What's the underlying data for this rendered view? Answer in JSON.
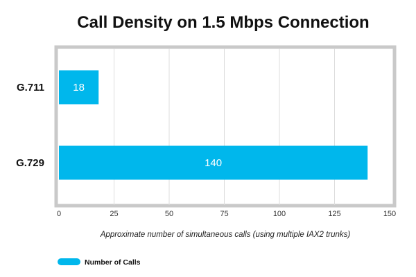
{
  "chart_data": {
    "type": "bar",
    "orientation": "horizontal",
    "title": "Call Density on 1.5 Mbps Connection",
    "xlabel": "Approximate number of simultaneous calls (using multiple IAX2 trunks)",
    "ylabel": "",
    "categories": [
      "G.711",
      "G.729"
    ],
    "series": [
      {
        "name": "Number of Calls",
        "values": [
          18,
          140
        ],
        "color": "#00b7ec"
      }
    ],
    "xlim": [
      0,
      150
    ],
    "ticks": [
      0,
      25,
      50,
      75,
      100,
      125,
      150
    ],
    "grid": true,
    "legend_position": "bottom-left",
    "data_labels": true
  }
}
